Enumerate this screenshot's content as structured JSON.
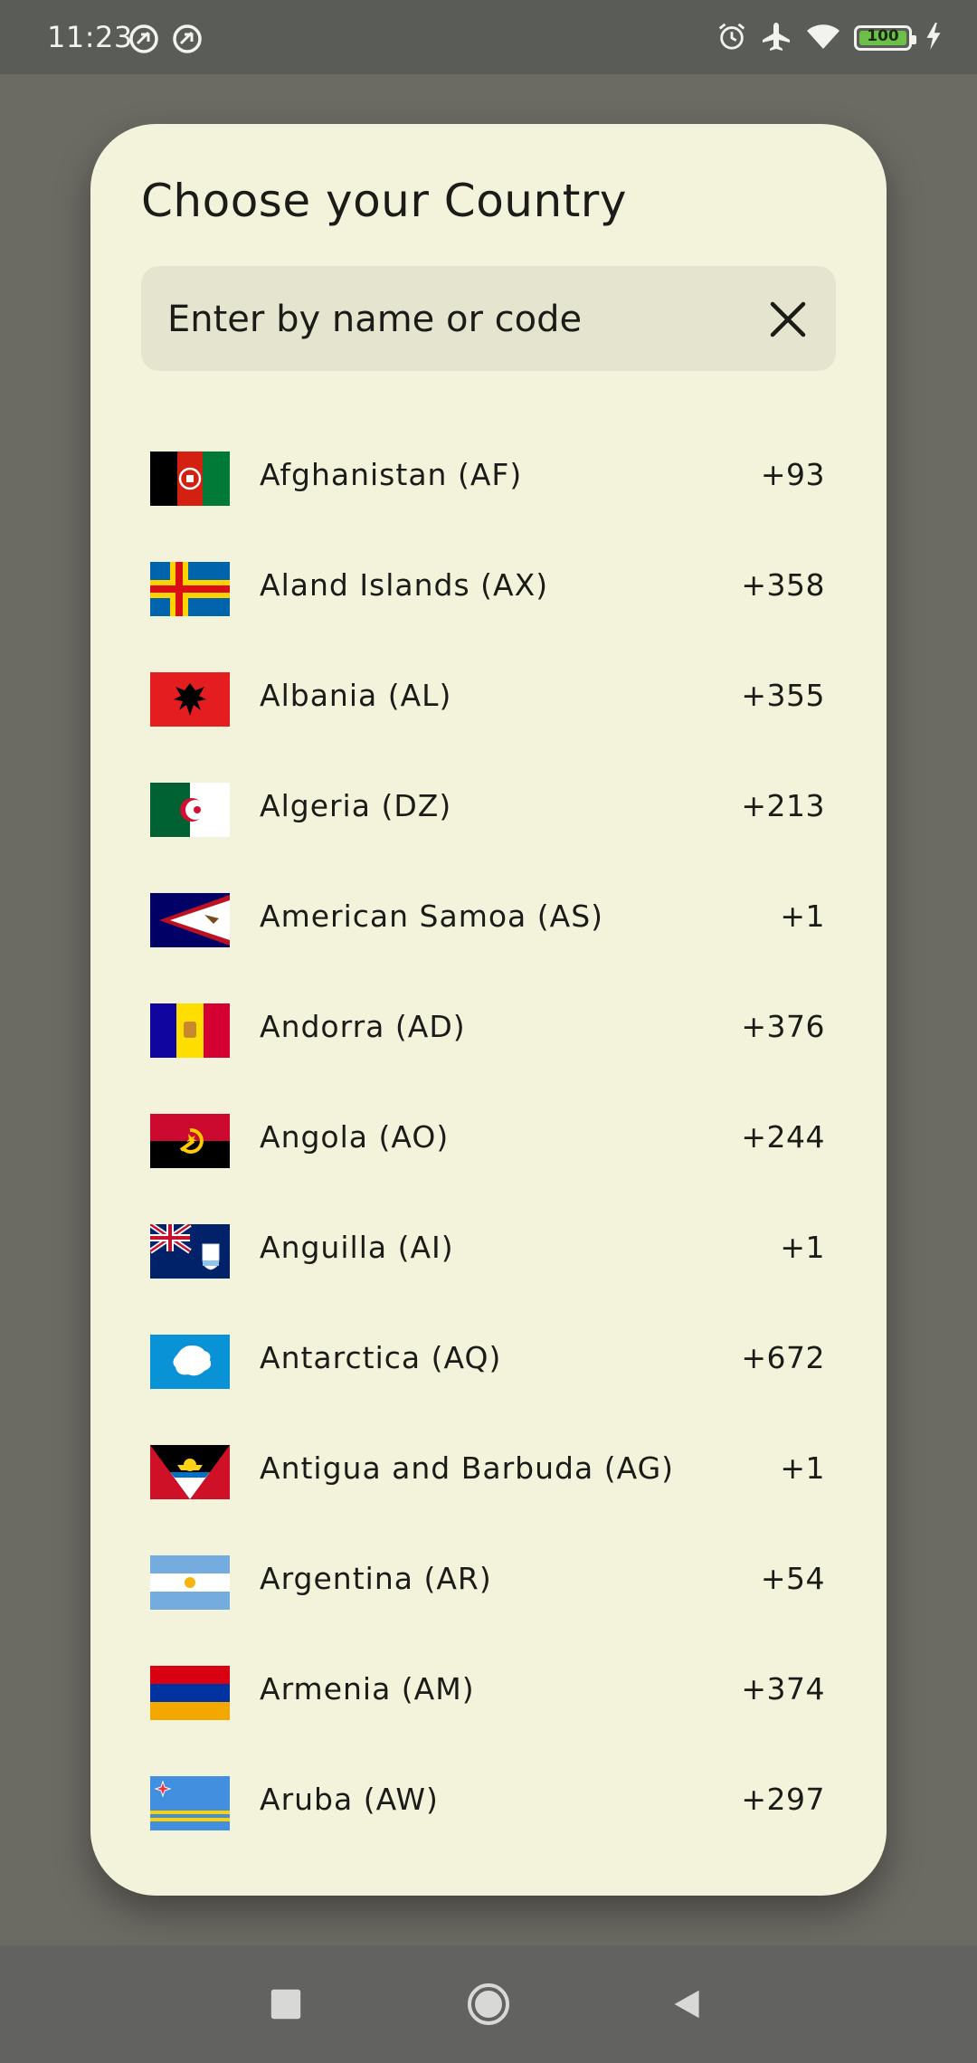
{
  "status_bar": {
    "time": "11:23",
    "battery": "100"
  },
  "dialog": {
    "title": "Choose your Country",
    "search": {
      "placeholder": "Enter by name or code",
      "value": ""
    }
  },
  "countries": [
    {
      "name": "Afghanistan (AF)",
      "code": "+93",
      "flag": "flag-af"
    },
    {
      "name": "Aland Islands (AX)",
      "code": "+358",
      "flag": "flag-ax"
    },
    {
      "name": "Albania (AL)",
      "code": "+355",
      "flag": "flag-al"
    },
    {
      "name": "Algeria (DZ)",
      "code": "+213",
      "flag": "flag-dz"
    },
    {
      "name": "American Samoa (AS)",
      "code": "+1",
      "flag": "flag-as"
    },
    {
      "name": "Andorra (AD)",
      "code": "+376",
      "flag": "flag-ad"
    },
    {
      "name": "Angola (AO)",
      "code": "+244",
      "flag": "flag-ao"
    },
    {
      "name": "Anguilla (AI)",
      "code": "+1",
      "flag": "flag-ai"
    },
    {
      "name": "Antarctica (AQ)",
      "code": "+672",
      "flag": "flag-aq"
    },
    {
      "name": "Antigua and Barbuda (AG)",
      "code": "+1",
      "flag": "flag-ag"
    },
    {
      "name": "Argentina (AR)",
      "code": "+54",
      "flag": "flag-ar"
    },
    {
      "name": "Armenia (AM)",
      "code": "+374",
      "flag": "flag-am"
    },
    {
      "name": "Aruba (AW)",
      "code": "+297",
      "flag": "flag-aw"
    }
  ],
  "colors": {
    "dialog_background": "#f3f3dc",
    "search_background": "#e5e5cf",
    "scrim": "#6b6a63",
    "text": "#1b1c17"
  }
}
